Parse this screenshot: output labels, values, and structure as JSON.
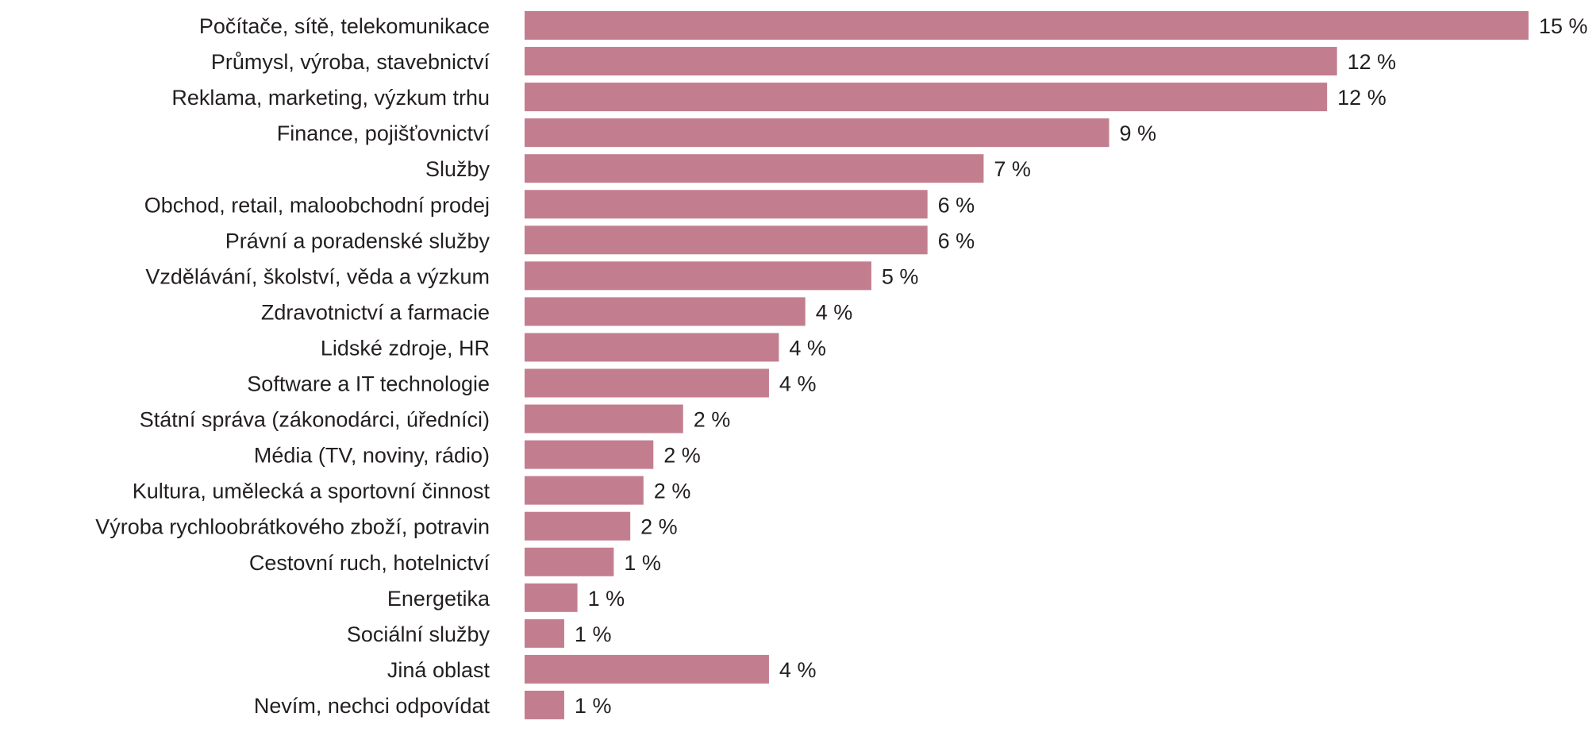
{
  "chart_data": {
    "type": "bar",
    "orientation": "horizontal",
    "categories": [
      "Počítače, sítě, telekomunikace",
      "Průmysl, výroba, stavebnictví",
      "Reklama, marketing, výzkum trhu",
      "Finance, pojišťovnictví",
      "Služby",
      "Obchod, retail, maloobchodní prodej",
      "Právní a poradenské služby",
      "Vzdělávání, školství, věda a výzkum",
      "Zdravotnictví a farmacie",
      "Lidské zdroje, HR",
      "Software a IT technologie",
      "Státní správa (zákonodárci, úředníci)",
      "Média (TV, noviny, rádio)",
      "Kultura, umělecká a sportovní činnost",
      "Výroba rychloobrátkového zboží, potravin",
      "Cestovní ruch, hotelnictví",
      "Energetika",
      "Sociální služby",
      "Jiná oblast",
      "Nevím, nechci odpovídat"
    ],
    "values": [
      15,
      12,
      12,
      9,
      7,
      6,
      6,
      5,
      4,
      4,
      4,
      2,
      2,
      2,
      2,
      1,
      1,
      1,
      4,
      1
    ],
    "value_labels": [
      "15 %",
      "12 %",
      "12 %",
      "9 %",
      "7 %",
      "6 %",
      "6 %",
      "5 %",
      "4 %",
      "4 %",
      "4 %",
      "2 %",
      "2 %",
      "2 %",
      "2 %",
      "1 %",
      "1 %",
      "1 %",
      "4 %",
      "1 %"
    ],
    "bar_extent": [
      15.2,
      12.3,
      12.15,
      8.85,
      6.95,
      6.1,
      6.1,
      5.25,
      4.25,
      3.85,
      3.7,
      2.4,
      1.95,
      1.8,
      1.6,
      1.35,
      0.8,
      0.6,
      3.7,
      0.6
    ],
    "xlim": [
      0,
      15.2
    ],
    "title": "",
    "xlabel": "",
    "ylabel": "",
    "grid": false,
    "legend": "none",
    "colors": {
      "bar": "#c27e8f",
      "text": "#231f20",
      "background": "#ffffff"
    }
  }
}
